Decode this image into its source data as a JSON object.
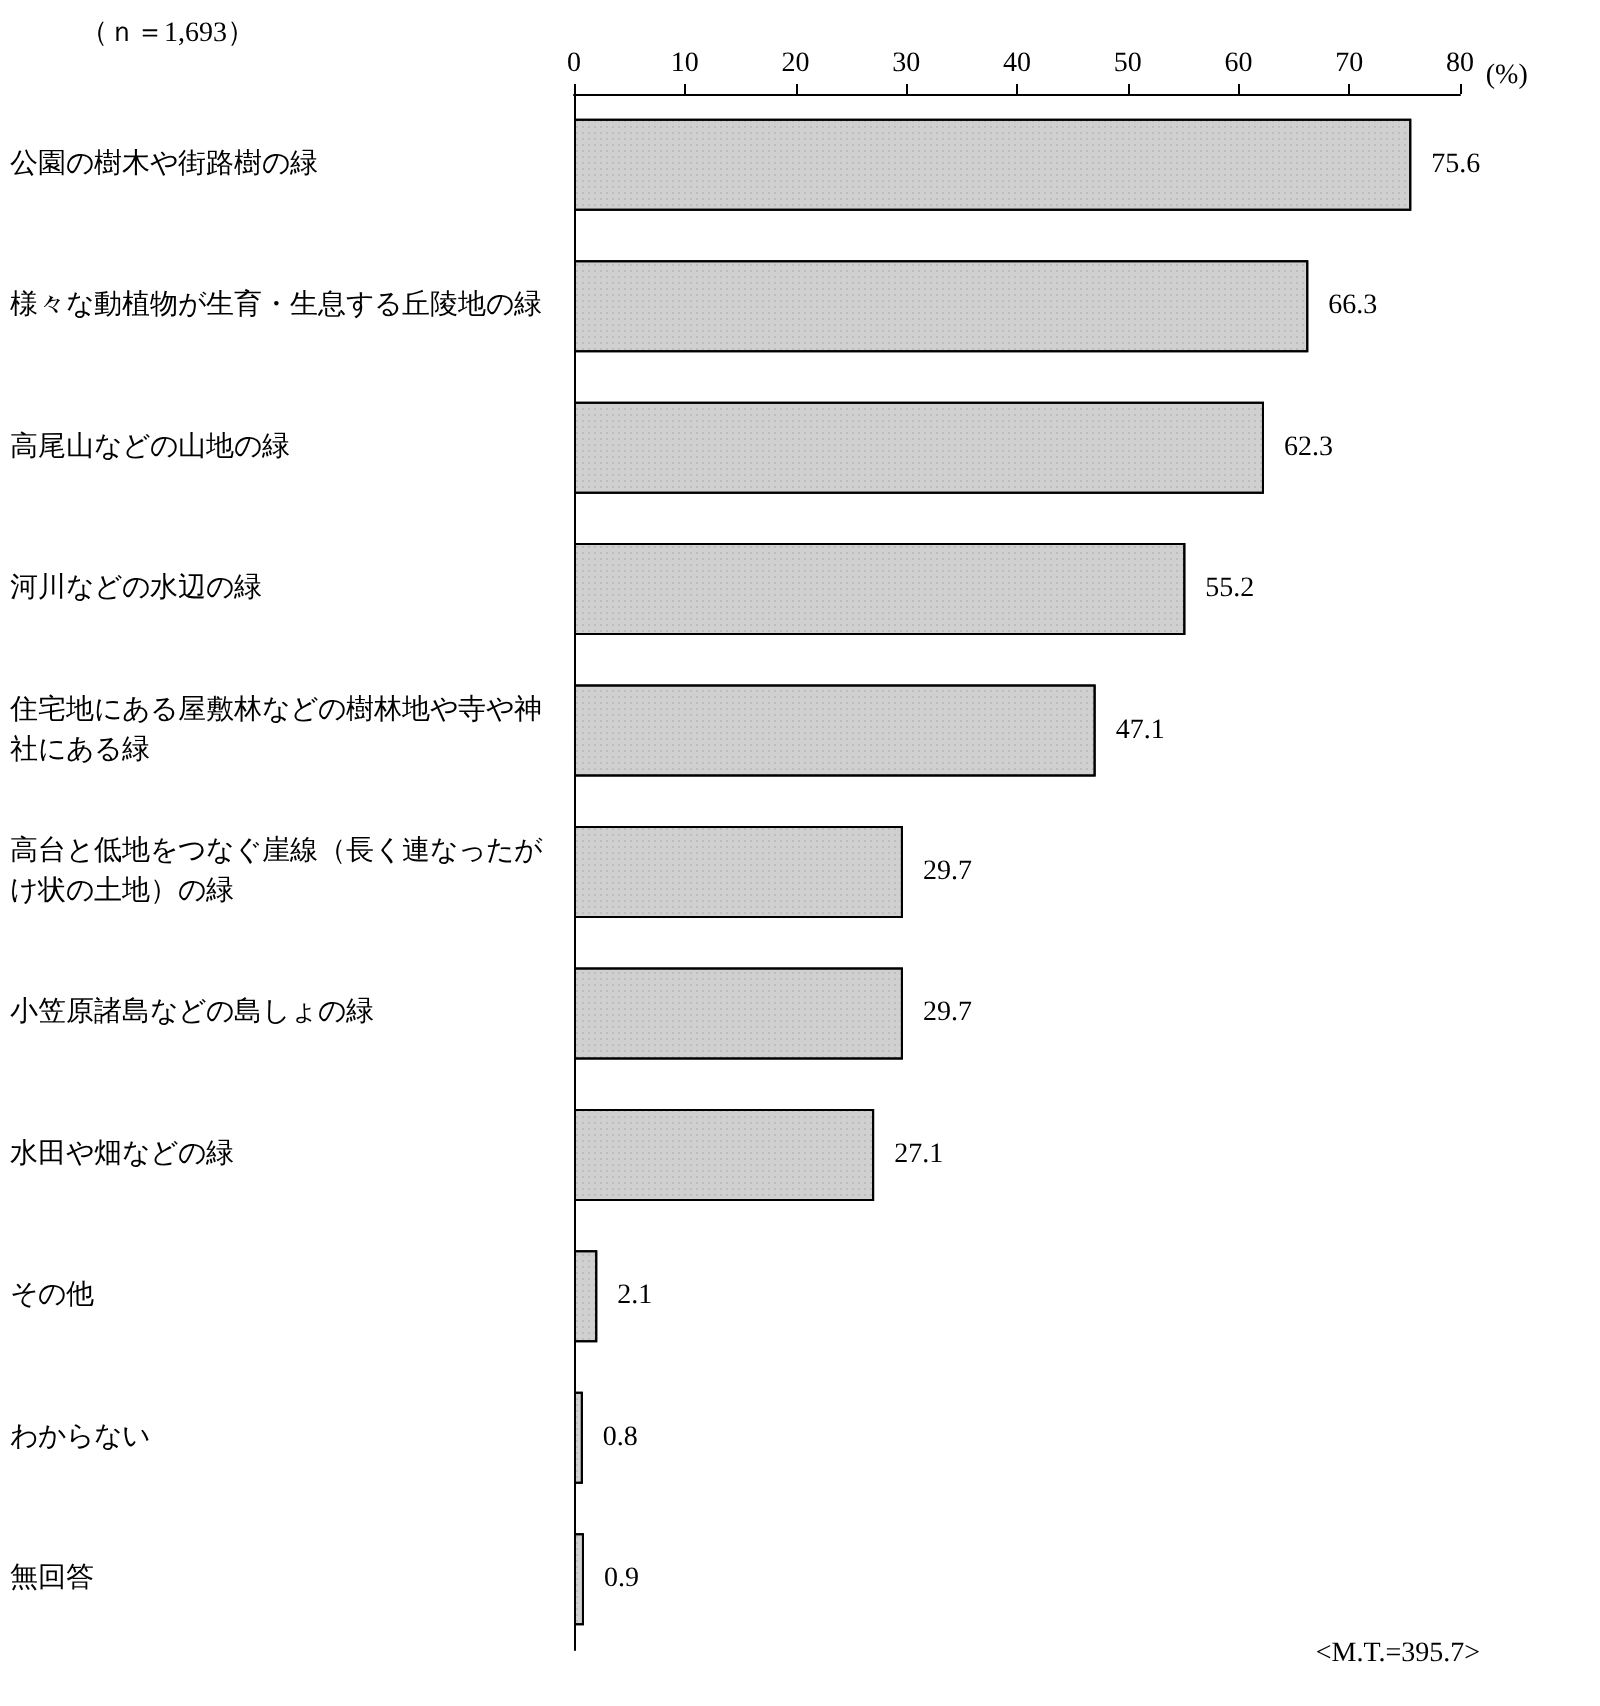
{
  "chart_data": {
    "type": "bar",
    "orientation": "horizontal",
    "xlabel": "(%)",
    "categories": [
      "公園の樹木や街路樹の緑",
      "様々な動植物が生育・生息する丘陵地の緑",
      "高尾山などの山地の緑",
      "河川などの水辺の緑",
      "住宅地にある屋敷林などの樹林地や寺や神社にある緑",
      "高台と低地をつなぐ崖線（長く連なったがけ状の土地）の緑",
      "小笠原諸島などの島しょの緑",
      "水田や畑などの緑",
      "その他",
      "わからない",
      "無回答"
    ],
    "values": [
      75.6,
      66.3,
      62.3,
      55.2,
      47.1,
      29.7,
      29.7,
      27.1,
      2.1,
      0.8,
      0.9
    ],
    "color": "#d0d0d0",
    "xlim": [
      0,
      80
    ],
    "xticks": [
      0,
      10,
      20,
      30,
      40,
      50,
      60,
      70,
      80
    ],
    "data_labels": true,
    "grid": false,
    "annotations": [
      "（ｎ＝1,693）",
      "<M.T.=395.7>"
    ]
  }
}
